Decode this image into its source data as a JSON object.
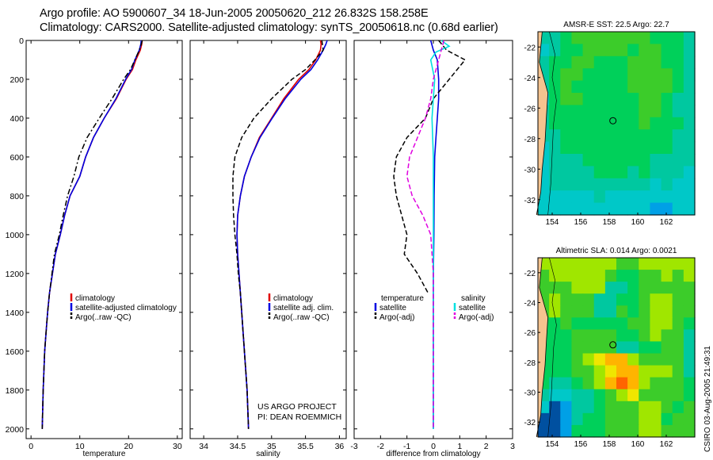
{
  "header": {
    "line1": "Argo profile: AO 5900607_34 18-Jun-2005 20050620_212 26.832S 158.258E",
    "line2": "Climatology: CARS2000. Satellite-adjusted climatology: synTS_20050618.nc (0.68d earlier)"
  },
  "footer": {
    "project": "US ARGO PROJECT",
    "pi": "PI: DEAN ROEMMICH"
  },
  "stamp": "CSIRO 03-Aug-2005 21:49:31",
  "colors": {
    "climatology": "#e00000",
    "satellite": "#0000e0",
    "argo": "#000000",
    "sal_satellite": "#00e0e0",
    "sal_argo": "#e000e0",
    "land": "#f5c38f",
    "coast": "#000000"
  },
  "chart_data": [
    {
      "type": "line",
      "id": "temperature-profile",
      "xlabel": "temperature",
      "ylabel": "",
      "xlim": [
        -1,
        31
      ],
      "ylim": [
        2050,
        0
      ],
      "xticks": [
        0,
        10,
        20,
        30
      ],
      "yticks": [
        0,
        200,
        400,
        600,
        800,
        1000,
        1200,
        1400,
        1600,
        1800,
        2000
      ],
      "legend": [
        "climatology",
        "satellite-adjusted climatology",
        "Argo(..raw -QC)"
      ],
      "series": [
        {
          "name": "climatology",
          "style": "solid",
          "color_key": "climatology",
          "x": [
            22.8,
            22.7,
            22.4,
            21.5,
            20.8,
            19.5,
            17.5,
            15.0,
            12.8,
            11.2,
            10.0,
            8.0,
            6.9,
            6.0,
            5.0,
            4.4,
            3.8,
            3.4,
            3.1,
            2.8,
            2.5,
            2.3
          ],
          "y": [
            0,
            20,
            50,
            100,
            150,
            200,
            300,
            400,
            500,
            600,
            700,
            800,
            900,
            1000,
            1100,
            1200,
            1300,
            1400,
            1500,
            1600,
            1800,
            2000
          ]
        },
        {
          "name": "satellite-adjusted climatology",
          "style": "solid",
          "color_key": "satellite",
          "x": [
            22.6,
            22.5,
            22.2,
            21.3,
            20.6,
            19.4,
            17.4,
            15.0,
            12.8,
            11.2,
            10.0,
            8.0,
            6.9,
            6.0,
            5.0,
            4.4,
            3.8,
            3.4,
            3.1,
            2.8,
            2.5,
            2.3
          ],
          "y": [
            0,
            20,
            50,
            100,
            150,
            200,
            300,
            400,
            500,
            600,
            700,
            800,
            900,
            1000,
            1100,
            1200,
            1300,
            1400,
            1500,
            1600,
            1800,
            2000
          ]
        },
        {
          "name": "Argo(..raw -QC)",
          "style": "dashdot",
          "color_key": "argo",
          "x": [
            22.8,
            22.6,
            22.2,
            21.3,
            20.4,
            19.0,
            16.6,
            14.0,
            11.5,
            9.8,
            8.8,
            7.5,
            6.6,
            5.8,
            4.8,
            4.3,
            3.8,
            3.4,
            3.1,
            2.8,
            2.5,
            2.3
          ],
          "y": [
            0,
            20,
            50,
            100,
            150,
            200,
            300,
            400,
            500,
            600,
            700,
            800,
            900,
            1000,
            1100,
            1200,
            1300,
            1400,
            1500,
            1600,
            1800,
            2000
          ]
        }
      ]
    },
    {
      "type": "line",
      "id": "salinity-profile",
      "xlabel": "salinity",
      "xlim": [
        33.8,
        36.1
      ],
      "ylim": [
        2050,
        0
      ],
      "xticks": [
        34,
        34.5,
        35,
        35.5,
        36
      ],
      "legend": [
        "climatology",
        "satellite adj. clim.",
        "Argo(..raw -QC)"
      ],
      "series": [
        {
          "name": "climatology",
          "style": "solid",
          "color_key": "climatology",
          "x": [
            35.72,
            35.73,
            35.72,
            35.65,
            35.55,
            35.4,
            35.18,
            35.0,
            34.82,
            34.7,
            34.6,
            34.54,
            34.5,
            34.49,
            34.5,
            34.52,
            34.54,
            34.56,
            34.58,
            34.6,
            34.62,
            34.64,
            34.66
          ],
          "y": [
            0,
            20,
            50,
            100,
            150,
            200,
            300,
            400,
            500,
            600,
            700,
            800,
            900,
            1000,
            1100,
            1200,
            1300,
            1400,
            1500,
            1600,
            1700,
            1800,
            2000
          ]
        },
        {
          "name": "satellite adj. clim.",
          "style": "solid",
          "color_key": "satellite",
          "x": [
            35.82,
            35.8,
            35.76,
            35.68,
            35.58,
            35.43,
            35.2,
            35.01,
            34.83,
            34.7,
            34.6,
            34.54,
            34.5,
            34.49,
            34.5,
            34.52,
            34.54,
            34.56,
            34.58,
            34.6,
            34.62,
            34.64,
            34.66
          ],
          "y": [
            0,
            20,
            50,
            100,
            150,
            200,
            300,
            400,
            500,
            600,
            700,
            800,
            900,
            1000,
            1100,
            1200,
            1300,
            1400,
            1500,
            1600,
            1700,
            1800,
            2000
          ]
        },
        {
          "name": "Argo(..raw -QC)",
          "style": "dashed",
          "color_key": "argo",
          "x": [
            35.74,
            35.75,
            35.76,
            35.64,
            35.5,
            35.3,
            35.0,
            34.74,
            34.56,
            34.46,
            34.43,
            34.43,
            34.44,
            34.46,
            34.49,
            34.51,
            34.54,
            34.56,
            34.58,
            34.6,
            34.62,
            34.64,
            34.66
          ],
          "y": [
            0,
            20,
            50,
            100,
            150,
            200,
            300,
            400,
            500,
            600,
            700,
            800,
            900,
            1000,
            1100,
            1200,
            1300,
            1400,
            1500,
            1600,
            1700,
            1800,
            2000
          ]
        }
      ]
    },
    {
      "type": "line",
      "id": "difference-profile",
      "xlabel": "difference from climatology",
      "xlim": [
        -3,
        3
      ],
      "ylim": [
        2050,
        0
      ],
      "xticks": [
        -3,
        -2,
        -1,
        0,
        1,
        2,
        3
      ],
      "legend_temperature": [
        "temperature",
        "satellite",
        "Argo(-adj)"
      ],
      "legend_salinity": [
        "salinity",
        "satellite",
        "Argo(-adj)"
      ],
      "series": [
        {
          "name": "temperature satellite",
          "style": "solid",
          "color_key": "satellite",
          "x": [
            -0.1,
            0.0,
            0.15,
            0.2,
            0.2,
            0.15,
            0.1,
            0.05,
            0.03,
            0.02,
            0.0,
            0.0,
            0.0
          ],
          "y": [
            0,
            50,
            100,
            200,
            300,
            400,
            500,
            600,
            800,
            1000,
            1200,
            1600,
            2000
          ]
        },
        {
          "name": "temperature Argo(-adj)",
          "style": "dashed",
          "color_key": "argo",
          "x": [
            0.2,
            0.5,
            1.2,
            0.6,
            0.0,
            -0.3,
            -1.0,
            -1.4,
            -1.5,
            -1.4,
            -1.2,
            -1.0,
            -1.1,
            -0.6,
            -0.2
          ],
          "y": [
            0,
            50,
            100,
            200,
            300,
            400,
            500,
            600,
            700,
            800,
            900,
            1000,
            1100,
            1200,
            1300
          ]
        },
        {
          "name": "salinity satellite",
          "style": "solid",
          "color_key": "sal_satellite",
          "x": [
            0.3,
            0.6,
            0.1,
            -0.1,
            0.05,
            0.0,
            -0.05,
            0.0,
            0.0,
            0.0,
            0.0
          ],
          "y": [
            0,
            30,
            60,
            100,
            200,
            300,
            400,
            600,
            1000,
            1500,
            2000
          ]
        },
        {
          "name": "salinity Argo(-adj)",
          "style": "dashed",
          "color_key": "sal_argo",
          "x": [
            0.4,
            0.2,
            0.0,
            -0.1,
            -0.3,
            -0.6,
            -0.9,
            -1.0,
            -0.8,
            -0.4,
            -0.1,
            0.0,
            0.0
          ],
          "y": [
            0,
            100,
            200,
            300,
            400,
            500,
            600,
            700,
            800,
            900,
            1000,
            1200,
            2000
          ]
        }
      ]
    },
    {
      "type": "heatmap",
      "id": "sst-map",
      "title": "AMSR-E SST: 22.5 Argo: 22.7",
      "xlim": [
        153,
        164
      ],
      "ylim": [
        -33,
        -21
      ],
      "xticks": [
        154,
        156,
        158,
        160,
        162
      ],
      "yticks": [
        -22,
        -24,
        -26,
        -28,
        -30,
        -32
      ],
      "profile_location": [
        158.26,
        -26.83
      ],
      "palette": [
        "#0050a0",
        "#00a0e6",
        "#00c8c8",
        "#00c8a0",
        "#00d05a",
        "#3ccc2a",
        "#a0e600",
        "#f0e600",
        "#ffb400",
        "#ff6400",
        "#d20000"
      ],
      "grid": [
        "33455555554443",
        "23445555455443",
        "34455444555443",
        "34554444555543",
        "34544444555543",
        "24554444455433",
        "34444444455433",
        "34444444454443",
        "33444444444433",
        "23444444444433",
        "23334444443333",
        "23333444343332",
        "23333333332322",
        "22222322222222",
        "22222222221122"
      ]
    },
    {
      "type": "heatmap",
      "id": "sla-map",
      "title": "Altimetric SLA: 0.014 Argo: 0.0021",
      "xlim": [
        153,
        164
      ],
      "ylim": [
        -33,
        -21
      ],
      "xticks": [
        154,
        156,
        158,
        160,
        162
      ],
      "yticks": [
        -22,
        -24,
        -26,
        -28,
        -30,
        -32
      ],
      "profile_location": [
        158.26,
        -26.83
      ],
      "palette": [
        "#0050a0",
        "#00a0e6",
        "#00c8c8",
        "#00c8a0",
        "#00d05a",
        "#3ccc2a",
        "#a0e600",
        "#f0e600",
        "#ffb400",
        "#ff6400",
        "#d20000"
      ],
      "grid": [
        "66666665566666",
        "56666654455656",
        "55566633455555",
        "56555334456655",
        "56555335456655",
        "44544444556654",
        "44455554456553",
        "44455553344553",
        "44456788655553",
        "44455678866653",
        "43345689865554",
        "32233456755554",
        "20133455566545",
        "00134455566455",
        "00144455566555"
      ]
    }
  ]
}
